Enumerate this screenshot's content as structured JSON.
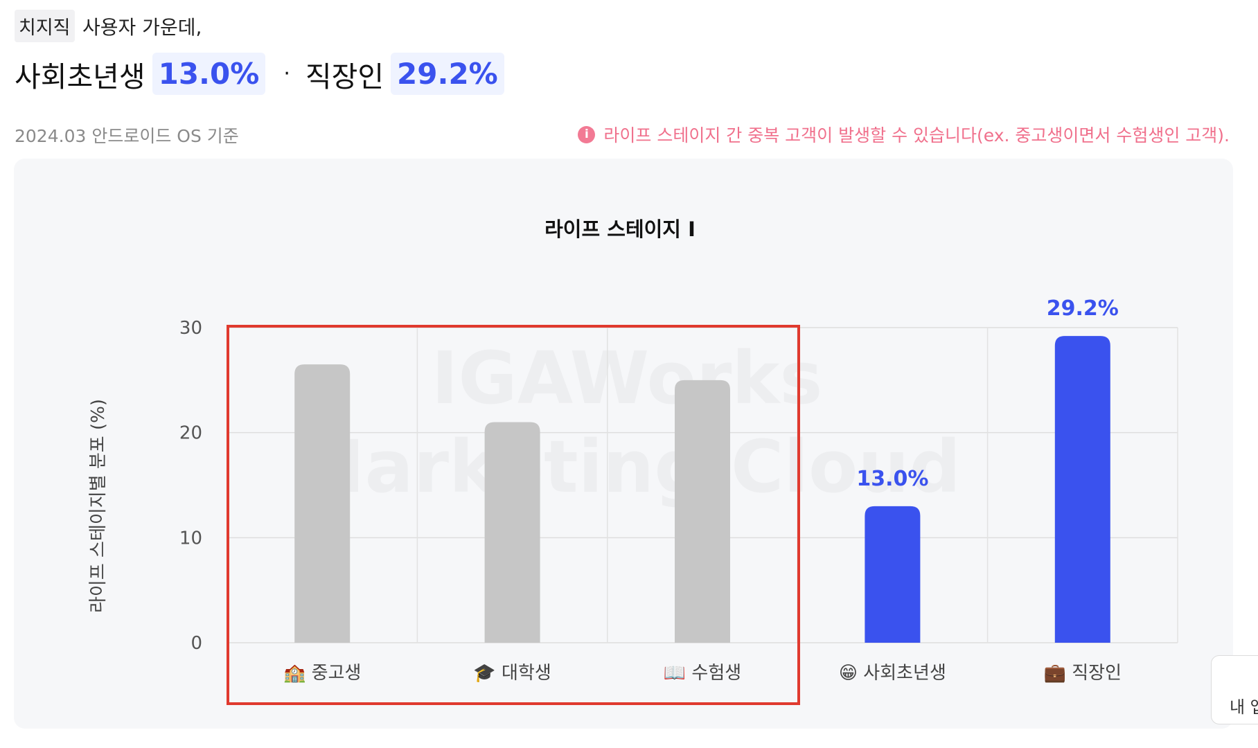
{
  "header": {
    "app_name": "치지직",
    "intro": "사용자 가운데,",
    "highlight1_label": "사회초년생",
    "highlight1_value": "13.0%",
    "separator": "·",
    "highlight2_label": "직장인",
    "highlight2_value": "29.2%",
    "basis": "2024.03 안드로이드 OS 기준",
    "notice": "라이프 스테이지 간 중복 고객이 발생할 수 있습니다(ex. 중고생이면서 수험생인 고객).",
    "notice_icon": "info-icon"
  },
  "colors": {
    "accent": "#3a52ee",
    "bar_muted": "#c6c6c6",
    "notice": "#f0708c",
    "highlight_box": "#e03a2f"
  },
  "watermark": {
    "line1": "IGAWorks",
    "line2": "Marketing Cloud"
  },
  "side_widget": {
    "label": "내 앱"
  },
  "chart_data": {
    "type": "bar",
    "title": "라이프 스테이지 I",
    "xlabel": "",
    "ylabel": "라이프 스테이지별 분포 (%)",
    "ylim": [
      0,
      30
    ],
    "yticks": [
      0,
      10,
      20,
      30
    ],
    "grid": true,
    "categories": [
      "🏫 중고생",
      "🎓 대학생",
      "📖 수험생",
      "😁 사회초년생",
      "💼 직장인"
    ],
    "values": [
      26.5,
      21.0,
      25.0,
      13.0,
      29.2
    ],
    "highlighted": [
      false,
      false,
      false,
      true,
      true
    ],
    "data_labels": [
      "",
      "",
      "",
      "13.0%",
      "29.2%"
    ],
    "annotation": "red outline box around 중고생, 대학생, 수험생"
  }
}
